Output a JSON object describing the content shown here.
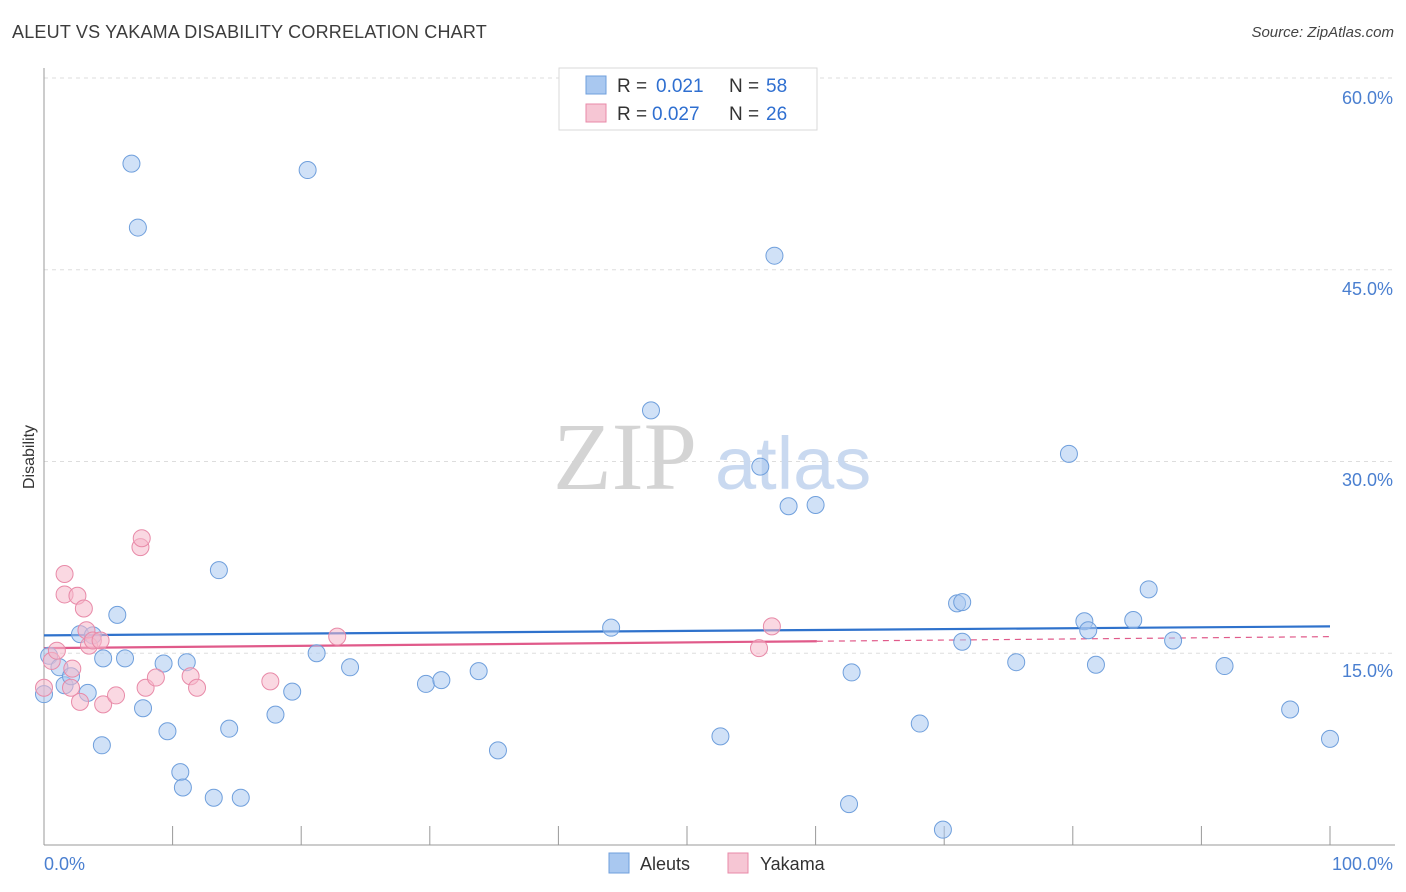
{
  "title": "ALEUT VS YAKAMA DISABILITY CORRELATION CHART",
  "source": "Source: ZipAtlas.com",
  "watermark": {
    "zip": "ZIP",
    "atlas": "atlas"
  },
  "colors": {
    "aleut_fill": "#a9c8f0",
    "aleut_stroke": "#6f9fdc",
    "aleut_line": "#2f72cc",
    "yakama_fill": "#f6b8ca",
    "yakama_stroke": "#e88aa8",
    "yakama_line": "#e05a8a",
    "tick_label": "#4a7fd0",
    "grid": "#dddddd"
  },
  "legend": {
    "rows": [
      {
        "r_label": "R =",
        "r_value": "0.021",
        "n_label": "N =",
        "n_value": "58"
      },
      {
        "r_label": "R =",
        "r_value": "0.027",
        "n_label": "N =",
        "n_value": "26"
      }
    ]
  },
  "bottom_legend": [
    "Aleuts",
    "Yakama"
  ],
  "chart_data": {
    "type": "scatter",
    "title": "ALEUT VS YAKAMA DISABILITY CORRELATION CHART",
    "xlabel": "",
    "ylabel": "Disability",
    "xlim": [
      0,
      100
    ],
    "ylim": [
      0,
      60
    ],
    "x_tick_labels": [
      "0.0%",
      "100.0%"
    ],
    "y_ticks": [
      15,
      30,
      45,
      60
    ],
    "y_tick_labels": [
      "15.0%",
      "30.0%",
      "45.0%",
      "60.0%"
    ],
    "series": [
      {
        "name": "Aleuts",
        "r": 0.021,
        "n": 58,
        "trend": {
          "x": [
            0,
            100
          ],
          "y": [
            16.4,
            17.1
          ]
        },
        "points": [
          [
            0,
            11.8
          ],
          [
            0.4,
            14.8
          ],
          [
            1.2,
            13.9
          ],
          [
            1.6,
            12.5
          ],
          [
            2.1,
            13.2
          ],
          [
            2.8,
            16.5
          ],
          [
            3.4,
            11.9
          ],
          [
            3.8,
            16.4
          ],
          [
            4.5,
            7.8
          ],
          [
            4.6,
            14.6
          ],
          [
            5.7,
            18.0
          ],
          [
            6.3,
            14.6
          ],
          [
            6.8,
            53.3
          ],
          [
            7.3,
            48.3
          ],
          [
            7.7,
            10.7
          ],
          [
            9.3,
            14.2
          ],
          [
            9.6,
            8.9
          ],
          [
            10.6,
            5.7
          ],
          [
            10.8,
            4.5
          ],
          [
            11.1,
            14.3
          ],
          [
            13.2,
            3.7
          ],
          [
            13.6,
            21.5
          ],
          [
            14.4,
            9.1
          ],
          [
            15.3,
            3.7
          ],
          [
            18.0,
            10.2
          ],
          [
            19.3,
            12.0
          ],
          [
            20.5,
            52.8
          ],
          [
            21.2,
            15.0
          ],
          [
            23.8,
            13.9
          ],
          [
            29.7,
            12.6
          ],
          [
            30.9,
            12.9
          ],
          [
            33.8,
            13.6
          ],
          [
            35.3,
            7.4
          ],
          [
            44.1,
            17.0
          ],
          [
            47.2,
            34.0
          ],
          [
            52.6,
            8.5
          ],
          [
            55.7,
            29.6
          ],
          [
            56.8,
            46.1
          ],
          [
            57.9,
            26.5
          ],
          [
            60.0,
            26.6
          ],
          [
            62.6,
            3.2
          ],
          [
            62.8,
            13.5
          ],
          [
            68.1,
            9.5
          ],
          [
            69.9,
            1.2
          ],
          [
            71.0,
            18.9
          ],
          [
            71.4,
            19.0
          ],
          [
            71.4,
            15.9
          ],
          [
            75.6,
            14.3
          ],
          [
            79.7,
            30.6
          ],
          [
            80.9,
            17.5
          ],
          [
            81.2,
            16.8
          ],
          [
            81.8,
            14.1
          ],
          [
            84.7,
            17.6
          ],
          [
            85.9,
            20.0
          ],
          [
            87.8,
            16.0
          ],
          [
            91.8,
            14.0
          ],
          [
            96.9,
            10.6
          ],
          [
            100.0,
            8.3
          ]
        ]
      },
      {
        "name": "Yakama",
        "r": 0.027,
        "n": 26,
        "trend": {
          "x": [
            0,
            100
          ],
          "y": [
            15.4,
            16.3
          ],
          "solid_until_x": 60.1
        },
        "points": [
          [
            0,
            12.3
          ],
          [
            0.6,
            14.4
          ],
          [
            1.0,
            15.2
          ],
          [
            1.6,
            19.6
          ],
          [
            1.6,
            21.2
          ],
          [
            2.1,
            12.3
          ],
          [
            2.2,
            13.8
          ],
          [
            2.6,
            19.5
          ],
          [
            2.8,
            11.2
          ],
          [
            3.1,
            18.5
          ],
          [
            3.3,
            16.8
          ],
          [
            3.5,
            15.6
          ],
          [
            3.8,
            16.0
          ],
          [
            4.4,
            16.0
          ],
          [
            4.6,
            11.0
          ],
          [
            5.6,
            11.7
          ],
          [
            7.5,
            23.3
          ],
          [
            7.6,
            24.0
          ],
          [
            7.9,
            12.3
          ],
          [
            8.7,
            13.1
          ],
          [
            11.4,
            13.2
          ],
          [
            11.9,
            12.3
          ],
          [
            17.6,
            12.8
          ],
          [
            22.8,
            16.3
          ],
          [
            55.6,
            15.4
          ],
          [
            56.6,
            17.1
          ]
        ]
      }
    ]
  }
}
